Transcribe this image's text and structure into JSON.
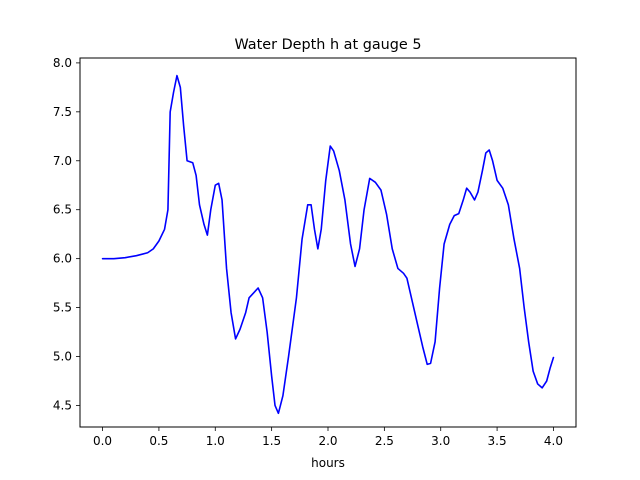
{
  "chart_data": {
    "type": "line",
    "title": "Water Depth h at gauge 5",
    "xlabel": "hours",
    "ylabel": "",
    "xlim": [
      -0.2,
      4.2
    ],
    "ylim": [
      4.28,
      8.05
    ],
    "x_ticks": [
      0.0,
      0.5,
      1.0,
      1.5,
      2.0,
      2.5,
      3.0,
      3.5,
      4.0
    ],
    "x_tick_labels": [
      "0.0",
      "0.5",
      "1.0",
      "1.5",
      "2.0",
      "2.5",
      "3.0",
      "3.5",
      "4.0"
    ],
    "y_ticks": [
      4.5,
      5.0,
      5.5,
      6.0,
      6.5,
      7.0,
      7.5,
      8.0
    ],
    "y_tick_labels": [
      "4.5",
      "5.0",
      "5.5",
      "6.0",
      "6.5",
      "7.0",
      "7.5",
      "8.0"
    ],
    "grid": false,
    "series": [
      {
        "color": "#0000ff",
        "points": [
          [
            0.0,
            6.0
          ],
          [
            0.1,
            6.0
          ],
          [
            0.2,
            6.01
          ],
          [
            0.3,
            6.03
          ],
          [
            0.4,
            6.06
          ],
          [
            0.45,
            6.1
          ],
          [
            0.5,
            6.18
          ],
          [
            0.55,
            6.3
          ],
          [
            0.58,
            6.5
          ],
          [
            0.6,
            7.5
          ],
          [
            0.63,
            7.7
          ],
          [
            0.66,
            7.87
          ],
          [
            0.69,
            7.75
          ],
          [
            0.72,
            7.35
          ],
          [
            0.75,
            7.0
          ],
          [
            0.8,
            6.98
          ],
          [
            0.83,
            6.85
          ],
          [
            0.86,
            6.55
          ],
          [
            0.9,
            6.35
          ],
          [
            0.93,
            6.24
          ],
          [
            0.96,
            6.5
          ],
          [
            1.0,
            6.75
          ],
          [
            1.03,
            6.77
          ],
          [
            1.06,
            6.6
          ],
          [
            1.1,
            5.9
          ],
          [
            1.14,
            5.45
          ],
          [
            1.18,
            5.18
          ],
          [
            1.22,
            5.28
          ],
          [
            1.27,
            5.45
          ],
          [
            1.3,
            5.6
          ],
          [
            1.34,
            5.65
          ],
          [
            1.38,
            5.7
          ],
          [
            1.42,
            5.6
          ],
          [
            1.46,
            5.25
          ],
          [
            1.5,
            4.8
          ],
          [
            1.53,
            4.5
          ],
          [
            1.56,
            4.42
          ],
          [
            1.6,
            4.6
          ],
          [
            1.65,
            5.0
          ],
          [
            1.72,
            5.6
          ],
          [
            1.77,
            6.2
          ],
          [
            1.82,
            6.55
          ],
          [
            1.85,
            6.55
          ],
          [
            1.88,
            6.3
          ],
          [
            1.91,
            6.1
          ],
          [
            1.94,
            6.3
          ],
          [
            1.98,
            6.8
          ],
          [
            2.02,
            7.15
          ],
          [
            2.05,
            7.1
          ],
          [
            2.1,
            6.9
          ],
          [
            2.15,
            6.6
          ],
          [
            2.2,
            6.15
          ],
          [
            2.24,
            5.92
          ],
          [
            2.28,
            6.1
          ],
          [
            2.32,
            6.5
          ],
          [
            2.37,
            6.82
          ],
          [
            2.42,
            6.78
          ],
          [
            2.47,
            6.7
          ],
          [
            2.52,
            6.45
          ],
          [
            2.57,
            6.1
          ],
          [
            2.62,
            5.9
          ],
          [
            2.67,
            5.85
          ],
          [
            2.7,
            5.8
          ],
          [
            2.75,
            5.55
          ],
          [
            2.8,
            5.3
          ],
          [
            2.84,
            5.1
          ],
          [
            2.88,
            4.92
          ],
          [
            2.91,
            4.93
          ],
          [
            2.95,
            5.15
          ],
          [
            2.99,
            5.7
          ],
          [
            3.03,
            6.15
          ],
          [
            3.08,
            6.35
          ],
          [
            3.12,
            6.44
          ],
          [
            3.16,
            6.46
          ],
          [
            3.2,
            6.6
          ],
          [
            3.23,
            6.72
          ],
          [
            3.26,
            6.68
          ],
          [
            3.3,
            6.6
          ],
          [
            3.33,
            6.68
          ],
          [
            3.37,
            6.9
          ],
          [
            3.4,
            7.08
          ],
          [
            3.43,
            7.11
          ],
          [
            3.46,
            7.0
          ],
          [
            3.5,
            6.8
          ],
          [
            3.55,
            6.72
          ],
          [
            3.6,
            6.55
          ],
          [
            3.65,
            6.2
          ],
          [
            3.7,
            5.9
          ],
          [
            3.74,
            5.5
          ],
          [
            3.78,
            5.15
          ],
          [
            3.82,
            4.85
          ],
          [
            3.86,
            4.72
          ],
          [
            3.9,
            4.68
          ],
          [
            3.94,
            4.75
          ],
          [
            3.97,
            4.88
          ],
          [
            4.0,
            4.99
          ]
        ]
      }
    ]
  }
}
